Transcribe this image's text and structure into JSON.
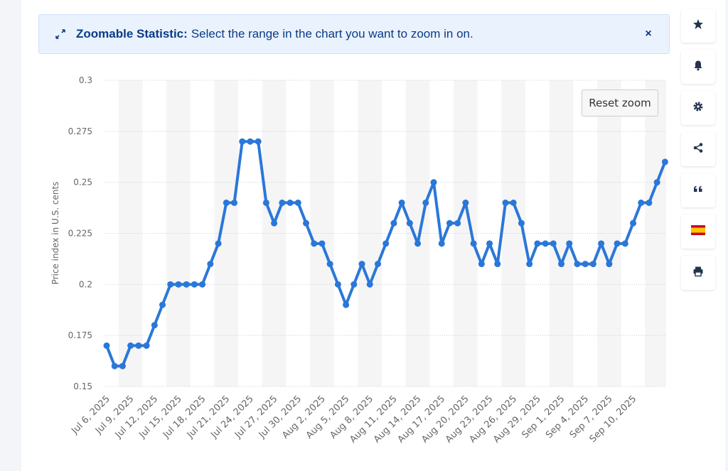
{
  "banner": {
    "title": "Zoomable Statistic:",
    "text": "Select the range in the chart you want to zoom in on.",
    "close_symbol": "×"
  },
  "reset_zoom_label": "Reset zoom",
  "sidebar_icons": [
    "star-icon",
    "bell-icon",
    "gear-icon",
    "share-icon",
    "quote-icon",
    "flag-spain-icon",
    "print-icon"
  ],
  "colors": {
    "accent": "#0a3b86",
    "line": "#2a77d9",
    "band": "#f5f5f5"
  },
  "chart_data": {
    "type": "line",
    "ylabel": "Price index in U.S. cents",
    "xlabel": "",
    "ylim": [
      0.15,
      0.3
    ],
    "yticks": [
      "0.15",
      "0.175",
      "0.2",
      "0.225",
      "0.25",
      "0.275",
      "0.3"
    ],
    "grid": true,
    "x_start": "Jul 6, 2025",
    "xtick_labels": [
      "Jul 6, 2025",
      "Jul 9, 2025",
      "Jul 12, 2025",
      "Jul 15, 2025",
      "Jul 18, 2025",
      "Jul 21, 2025",
      "Jul 24, 2025",
      "Jul 27, 2025",
      "Jul 30, 2025",
      "Aug 2, 2025",
      "Aug 5, 2025",
      "Aug 8, 2025",
      "Aug 11, 2025",
      "Aug 14, 2025",
      "Aug 17, 2025",
      "Aug 20, 2025",
      "Aug 23, 2025",
      "Aug 26, 2025",
      "Aug 29, 2025",
      "Sep 1, 2025",
      "Sep 4, 2025",
      "Sep 7, 2025",
      "Sep 10, 2025"
    ],
    "values": [
      0.17,
      0.16,
      0.16,
      0.17,
      0.17,
      0.17,
      0.18,
      0.19,
      0.2,
      0.2,
      0.2,
      0.2,
      0.2,
      0.21,
      0.22,
      0.24,
      0.24,
      0.27,
      0.27,
      0.27,
      0.24,
      0.23,
      0.24,
      0.24,
      0.24,
      0.23,
      0.22,
      0.22,
      0.21,
      0.2,
      0.19,
      0.2,
      0.21,
      0.2,
      0.21,
      0.22,
      0.23,
      0.24,
      0.23,
      0.22,
      0.24,
      0.25,
      0.22,
      0.23,
      0.23,
      0.24,
      0.22,
      0.21,
      0.22,
      0.21,
      0.24,
      0.24,
      0.23,
      0.21,
      0.22,
      0.22,
      0.22,
      0.21,
      0.22,
      0.21,
      0.21,
      0.21,
      0.22,
      0.21,
      0.22,
      0.22,
      0.23,
      0.24,
      0.24,
      0.25,
      0.26
    ]
  }
}
